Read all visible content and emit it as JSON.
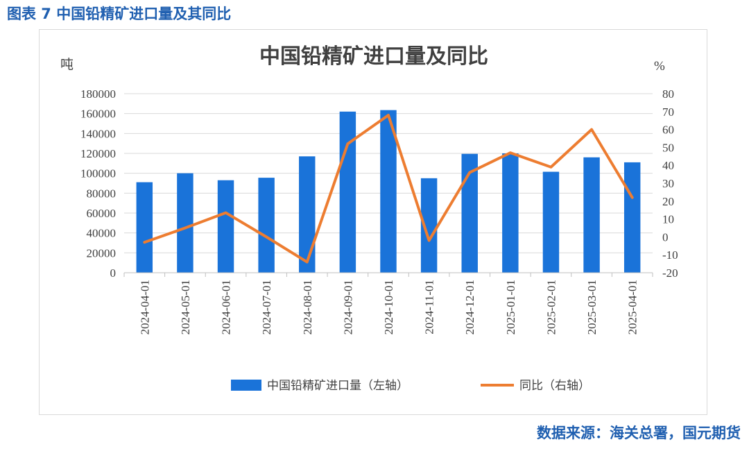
{
  "figure_caption": "图表 7 中国铅精矿进口量及其同比",
  "source_note": "数据来源：海关总署，国元期货",
  "colors": {
    "bar": "#1a73d9",
    "line": "#ed7d31",
    "caption": "#1f5fb0",
    "grid": "#d9d9d9"
  },
  "chart_data": {
    "type": "bar",
    "title": "中国铅精矿进口量及同比",
    "ylabel": "吨",
    "y2label": "%",
    "categories": [
      "2024-04-01",
      "2024-05-01",
      "2024-06-01",
      "2024-07-01",
      "2024-08-01",
      "2024-09-01",
      "2024-10-01",
      "2024-11-01",
      "2024-12-01",
      "2025-01-01",
      "2025-02-01",
      "2025-03-01",
      "2025-04-01"
    ],
    "ylim": [
      0,
      180000
    ],
    "yticks": [
      "0",
      "20000",
      "40000",
      "60000",
      "80000",
      "100000",
      "120000",
      "140000",
      "160000",
      "180000"
    ],
    "y2lim": [
      -20,
      80
    ],
    "y2ticks": [
      "-20",
      "-10",
      "0",
      "10",
      "20",
      "30",
      "40",
      "50",
      "60",
      "70",
      "80"
    ],
    "grid": true,
    "legend_position": "bottom",
    "series": [
      {
        "name": "中国铅精矿进口量（左轴）",
        "type": "bar",
        "axis": "left",
        "values": [
          91000,
          100000,
          93000,
          95500,
          117000,
          162000,
          163500,
          95000,
          119500,
          120000,
          101500,
          116000,
          111000
        ]
      },
      {
        "name": "同比（右轴）",
        "type": "line",
        "axis": "right",
        "values": [
          -3,
          5,
          13.5,
          0,
          -14,
          52,
          68,
          -2,
          36,
          47,
          39,
          60,
          22
        ]
      }
    ]
  }
}
